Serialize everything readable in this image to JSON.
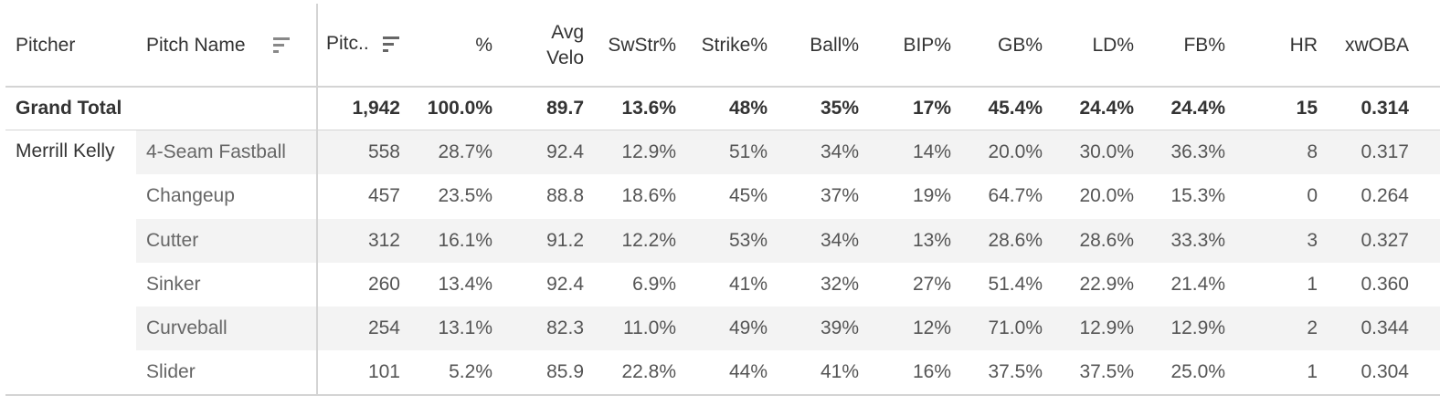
{
  "chart_data": {
    "type": "table",
    "row_headers": [
      "Pitcher",
      "Pitch Name"
    ],
    "columns": [
      "Pitc..",
      "%",
      "Avg\nVelo",
      "SwStr%",
      "Strike%",
      "Ball%",
      "BIP%",
      "GB%",
      "LD%",
      "FB%",
      "HR",
      "xwOBA"
    ],
    "sorted_by": [
      "Pitch Name",
      "Pitc.."
    ],
    "grand_total": {
      "label": "Grand Total",
      "values": [
        "1,942",
        "100.0%",
        "89.7",
        "13.6%",
        "48%",
        "35%",
        "17%",
        "45.4%",
        "24.4%",
        "24.4%",
        "15",
        "0.314"
      ]
    },
    "pitcher": "Merrill Kelly",
    "rows": [
      {
        "pitch": "4-Seam Fastball",
        "values": [
          "558",
          "28.7%",
          "92.4",
          "12.9%",
          "51%",
          "34%",
          "14%",
          "20.0%",
          "30.0%",
          "36.3%",
          "8",
          "0.317"
        ]
      },
      {
        "pitch": "Changeup",
        "values": [
          "457",
          "23.5%",
          "88.8",
          "18.6%",
          "45%",
          "37%",
          "19%",
          "64.7%",
          "20.0%",
          "15.3%",
          "0",
          "0.264"
        ]
      },
      {
        "pitch": "Cutter",
        "values": [
          "312",
          "16.1%",
          "91.2",
          "12.2%",
          "53%",
          "34%",
          "13%",
          "28.6%",
          "28.6%",
          "33.3%",
          "3",
          "0.327"
        ]
      },
      {
        "pitch": "Sinker",
        "values": [
          "260",
          "13.4%",
          "92.4",
          "6.9%",
          "41%",
          "32%",
          "27%",
          "51.4%",
          "22.9%",
          "21.4%",
          "1",
          "0.360"
        ]
      },
      {
        "pitch": "Curveball",
        "values": [
          "254",
          "13.1%",
          "82.3",
          "11.0%",
          "49%",
          "39%",
          "12%",
          "71.0%",
          "12.9%",
          "12.9%",
          "2",
          "0.344"
        ]
      },
      {
        "pitch": "Slider",
        "values": [
          "101",
          "5.2%",
          "85.9",
          "22.8%",
          "44%",
          "41%",
          "16%",
          "37.5%",
          "37.5%",
          "25.0%",
          "1",
          "0.304"
        ]
      }
    ]
  },
  "icons": {
    "sort": "sort-descending-icon"
  },
  "colors": {
    "band": "#f3f3f3",
    "rule": "#d4d4d4",
    "text": "#333333"
  }
}
